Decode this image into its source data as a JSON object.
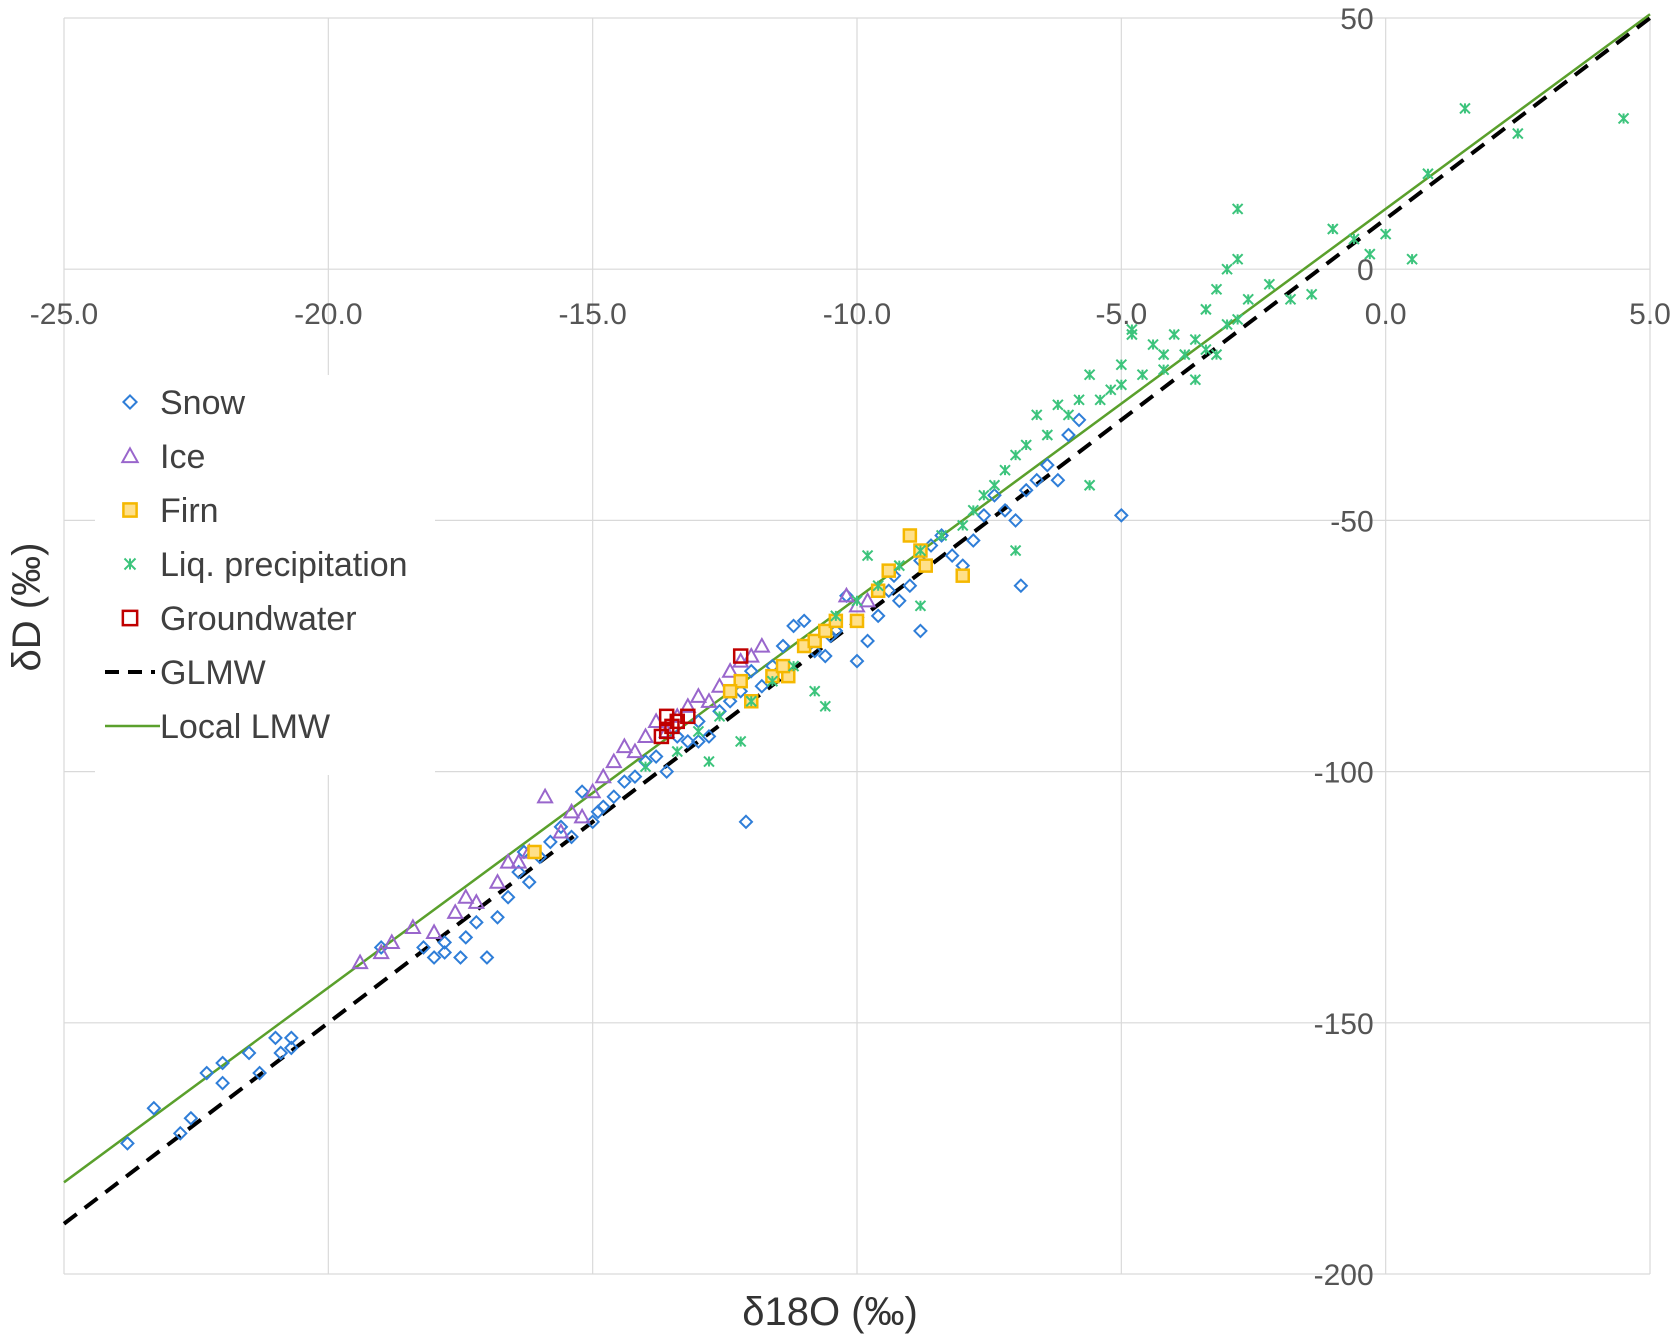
{
  "chart_data": {
    "type": "scatter",
    "xlabel": "δ18O (‰)",
    "ylabel": "δD (‰)",
    "xlim": [
      -25,
      5
    ],
    "ylim": [
      -200,
      50
    ],
    "x_ticks": [
      "-25.0",
      "-20.0",
      "-15.0",
      "-10.0",
      "-5.0",
      "0.0",
      "5.0"
    ],
    "y_ticks": [
      "50",
      "0",
      "-50",
      "-100",
      "-150",
      "-200"
    ],
    "grid": true,
    "legend_position": "left",
    "colors": {
      "snow": "#2f7ed8",
      "ice": "#9966cc",
      "firn": "#f5b800",
      "liq": "#3cc47c",
      "groundwater": "#c00000",
      "glmw": "#000000",
      "local_lmw": "#5aa02c",
      "grid": "#d9d9d9"
    },
    "series": [
      {
        "name": "Snow",
        "marker": "diamond",
        "points": [
          [
            -23.8,
            -174
          ],
          [
            -23.3,
            -167
          ],
          [
            -22.8,
            -172
          ],
          [
            -22.6,
            -169
          ],
          [
            -22.3,
            -160
          ],
          [
            -22.0,
            -158
          ],
          [
            -22.0,
            -162
          ],
          [
            -21.5,
            -156
          ],
          [
            -21.3,
            -160
          ],
          [
            -21.0,
            -153
          ],
          [
            -20.9,
            -156
          ],
          [
            -20.7,
            -153
          ],
          [
            -20.7,
            -155
          ],
          [
            -18.2,
            -135
          ],
          [
            -18.0,
            -137
          ],
          [
            -17.8,
            -134
          ],
          [
            -17.8,
            -136
          ],
          [
            -17.4,
            -133
          ],
          [
            -17.2,
            -130
          ],
          [
            -17.0,
            -137
          ],
          [
            -16.8,
            -129
          ],
          [
            -16.6,
            -125
          ],
          [
            -16.4,
            -120
          ],
          [
            -16.2,
            -122
          ],
          [
            -16.0,
            -117
          ],
          [
            -15.8,
            -114
          ],
          [
            -15.6,
            -111
          ],
          [
            -15.4,
            -113
          ],
          [
            -15.2,
            -104
          ],
          [
            -15.0,
            -110
          ],
          [
            -14.8,
            -107
          ],
          [
            -14.6,
            -105
          ],
          [
            -14.4,
            -102
          ],
          [
            -14.2,
            -101
          ],
          [
            -14.0,
            -98
          ],
          [
            -13.8,
            -97
          ],
          [
            -13.6,
            -100
          ],
          [
            -13.4,
            -93
          ],
          [
            -13.2,
            -94
          ],
          [
            -13.0,
            -90
          ],
          [
            -12.8,
            -93
          ],
          [
            -12.6,
            -88
          ],
          [
            -12.4,
            -86
          ],
          [
            -12.2,
            -84
          ],
          [
            -12.1,
            -110
          ],
          [
            -12.0,
            -80
          ],
          [
            -11.8,
            -83
          ],
          [
            -11.6,
            -79
          ],
          [
            -11.4,
            -75
          ],
          [
            -11.2,
            -71
          ],
          [
            -11.0,
            -70
          ],
          [
            -10.8,
            -76
          ],
          [
            -10.6,
            -77
          ],
          [
            -10.4,
            -72
          ],
          [
            -10.2,
            -65
          ],
          [
            -10.0,
            -78
          ],
          [
            -9.8,
            -74
          ],
          [
            -9.6,
            -69
          ],
          [
            -9.4,
            -64
          ],
          [
            -9.2,
            -66
          ],
          [
            -9.0,
            -63
          ],
          [
            -8.8,
            -58
          ],
          [
            -8.6,
            -55
          ],
          [
            -8.4,
            -53
          ],
          [
            -8.2,
            -57
          ],
          [
            -8.0,
            -59
          ],
          [
            -7.8,
            -54
          ],
          [
            -7.6,
            -49
          ],
          [
            -7.4,
            -45
          ],
          [
            -7.2,
            -48
          ],
          [
            -7.0,
            -50
          ],
          [
            -6.9,
            -63
          ],
          [
            -6.8,
            -44
          ],
          [
            -6.6,
            -42
          ],
          [
            -6.4,
            -39
          ],
          [
            -6.2,
            -42
          ],
          [
            -6.0,
            -33
          ],
          [
            -5.8,
            -30
          ],
          [
            -5.0,
            -49
          ],
          [
            -8.8,
            -72
          ],
          [
            -9.3,
            -61
          ],
          [
            -10.5,
            -73
          ],
          [
            -13.0,
            -94
          ],
          [
            -14.9,
            -108
          ],
          [
            -16.3,
            -116
          ],
          [
            -17.5,
            -137
          ],
          [
            -19.0,
            -135
          ]
        ]
      },
      {
        "name": "Ice",
        "marker": "triangle",
        "points": [
          [
            -19.4,
            -138
          ],
          [
            -19.0,
            -136
          ],
          [
            -18.8,
            -134
          ],
          [
            -18.4,
            -131
          ],
          [
            -18.0,
            -132
          ],
          [
            -17.6,
            -128
          ],
          [
            -17.4,
            -125
          ],
          [
            -17.2,
            -126
          ],
          [
            -16.8,
            -122
          ],
          [
            -16.6,
            -118
          ],
          [
            -16.4,
            -118
          ],
          [
            -16.2,
            -116
          ],
          [
            -15.9,
            -105
          ],
          [
            -15.6,
            -112
          ],
          [
            -15.4,
            -108
          ],
          [
            -15.2,
            -109
          ],
          [
            -15.0,
            -104
          ],
          [
            -14.8,
            -101
          ],
          [
            -14.6,
            -98
          ],
          [
            -14.4,
            -95
          ],
          [
            -14.2,
            -96
          ],
          [
            -14.0,
            -93
          ],
          [
            -13.8,
            -90
          ],
          [
            -13.6,
            -92
          ],
          [
            -13.4,
            -89
          ],
          [
            -13.2,
            -87
          ],
          [
            -13.0,
            -85
          ],
          [
            -12.8,
            -86
          ],
          [
            -12.6,
            -83
          ],
          [
            -12.4,
            -80
          ],
          [
            -12.2,
            -78
          ],
          [
            -12.0,
            -77
          ],
          [
            -11.8,
            -75
          ],
          [
            -10.2,
            -65
          ],
          [
            -10.0,
            -67
          ],
          [
            -9.8,
            -66
          ]
        ]
      },
      {
        "name": "Firn",
        "marker": "square",
        "points": [
          [
            -16.1,
            -116
          ],
          [
            -12.2,
            -82
          ],
          [
            -12.0,
            -86
          ],
          [
            -11.6,
            -81
          ],
          [
            -11.3,
            -81
          ],
          [
            -11.0,
            -75
          ],
          [
            -10.8,
            -74
          ],
          [
            -10.6,
            -72
          ],
          [
            -10.4,
            -70
          ],
          [
            -10.0,
            -70
          ],
          [
            -9.6,
            -64
          ],
          [
            -9.4,
            -60
          ],
          [
            -9.0,
            -53
          ],
          [
            -8.8,
            -56
          ],
          [
            -8.7,
            -59
          ],
          [
            -8.0,
            -61
          ],
          [
            -12.4,
            -84
          ],
          [
            -11.4,
            -79
          ]
        ]
      },
      {
        "name": "Liq. precipitation",
        "marker": "x",
        "points": [
          [
            4.5,
            30
          ],
          [
            2.5,
            27
          ],
          [
            1.5,
            32
          ],
          [
            0.8,
            19
          ],
          [
            0.5,
            2
          ],
          [
            0.0,
            7
          ],
          [
            -0.3,
            3
          ],
          [
            -0.6,
            6
          ],
          [
            -1.0,
            8
          ],
          [
            -1.4,
            -5
          ],
          [
            -1.8,
            -6
          ],
          [
            -2.2,
            -3
          ],
          [
            -2.6,
            -6
          ],
          [
            -2.8,
            2
          ],
          [
            -3.0,
            -11
          ],
          [
            -3.0,
            0
          ],
          [
            -3.2,
            -4
          ],
          [
            -3.4,
            -8
          ],
          [
            -3.6,
            -14
          ],
          [
            -3.8,
            -17
          ],
          [
            -4.0,
            -13
          ],
          [
            -4.2,
            -20
          ],
          [
            -4.4,
            -15
          ],
          [
            -4.6,
            -21
          ],
          [
            -4.8,
            -13
          ],
          [
            -5.0,
            -19
          ],
          [
            -5.2,
            -24
          ],
          [
            -5.4,
            -26
          ],
          [
            -5.6,
            -21
          ],
          [
            -5.8,
            -26
          ],
          [
            -6.0,
            -29
          ],
          [
            -6.2,
            -27
          ],
          [
            -6.4,
            -33
          ],
          [
            -6.6,
            -29
          ],
          [
            -6.8,
            -35
          ],
          [
            -7.0,
            -37
          ],
          [
            -7.2,
            -40
          ],
          [
            -7.4,
            -43
          ],
          [
            -7.6,
            -45
          ],
          [
            -7.8,
            -48
          ],
          [
            -8.0,
            -51
          ],
          [
            -8.4,
            -53
          ],
          [
            -8.8,
            -56
          ],
          [
            -9.2,
            -59
          ],
          [
            -9.6,
            -63
          ],
          [
            -10.0,
            -66
          ],
          [
            -10.4,
            -69
          ],
          [
            -10.6,
            -87
          ],
          [
            -10.8,
            -84
          ],
          [
            -11.2,
            -79
          ],
          [
            -11.6,
            -82
          ],
          [
            -12.0,
            -86
          ],
          [
            -12.2,
            -94
          ],
          [
            -12.6,
            -89
          ],
          [
            -12.8,
            -98
          ],
          [
            -13.0,
            -92
          ],
          [
            -13.4,
            -96
          ],
          [
            -14.0,
            -99
          ],
          [
            -2.8,
            -10
          ],
          [
            -3.2,
            -17
          ],
          [
            -3.6,
            -22
          ],
          [
            -4.2,
            -17
          ],
          [
            -5.0,
            -23
          ],
          [
            -7.0,
            -56
          ],
          [
            -8.8,
            -67
          ],
          [
            -9.8,
            -57
          ],
          [
            -5.6,
            -43
          ],
          [
            -2.8,
            12
          ],
          [
            -4.8,
            -12
          ],
          [
            -3.4,
            -16
          ]
        ]
      },
      {
        "name": "Groundwater",
        "marker": "square-open",
        "points": [
          [
            -12.2,
            -77
          ],
          [
            -13.2,
            -89
          ],
          [
            -13.4,
            -90
          ],
          [
            -13.5,
            -91
          ],
          [
            -13.6,
            -89
          ],
          [
            -13.6,
            -92
          ],
          [
            -13.7,
            -93
          ]
        ]
      }
    ],
    "lines": [
      {
        "name": "GLMW",
        "style": "dashed",
        "slope": 8,
        "intercept": 10
      },
      {
        "name": "Local LMW",
        "style": "solid",
        "slope": 7.75,
        "intercept": 12
      }
    ],
    "legend": [
      {
        "label": "Snow",
        "key": "snow"
      },
      {
        "label": "Ice",
        "key": "ice"
      },
      {
        "label": "Firn",
        "key": "firn"
      },
      {
        "label": "Liq. precipitation",
        "key": "liq"
      },
      {
        "label": "Groundwater",
        "key": "groundwater"
      },
      {
        "label": "GLMW",
        "key": "glmw"
      },
      {
        "label": "Local LMW",
        "key": "local_lmw"
      }
    ]
  }
}
